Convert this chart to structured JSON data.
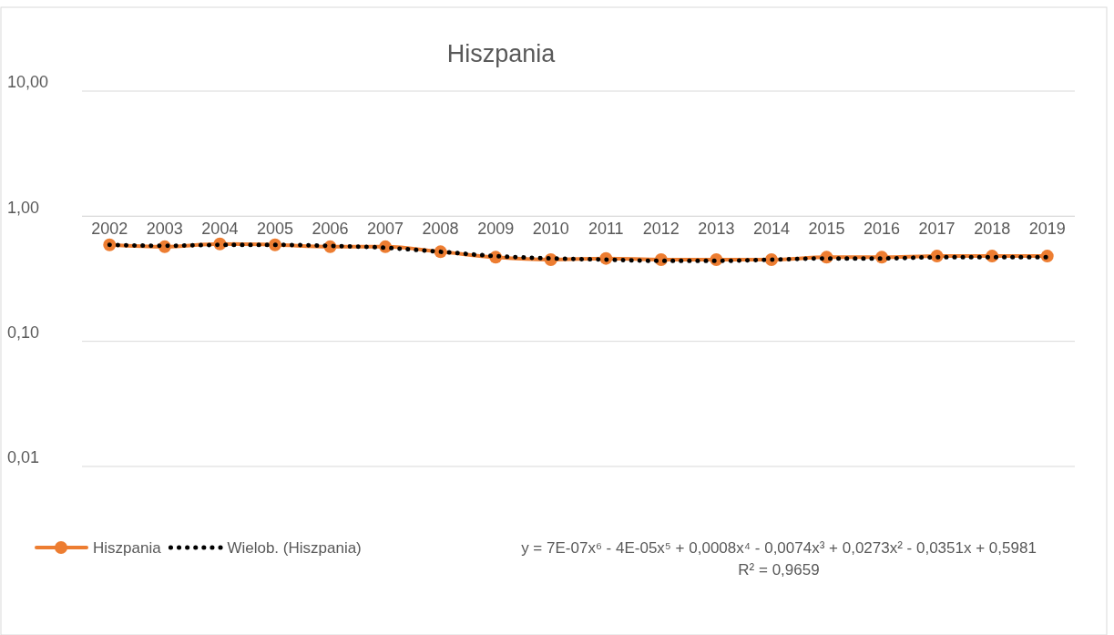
{
  "chart_data": {
    "type": "line",
    "title": "Hiszpania",
    "categories": [
      "2002",
      "2003",
      "2004",
      "2005",
      "2006",
      "2007",
      "2008",
      "2009",
      "2010",
      "2011",
      "2012",
      "2013",
      "2014",
      "2015",
      "2016",
      "2017",
      "2018",
      "2019"
    ],
    "series": [
      {
        "name": "Hiszpania",
        "color": "#ed7d31",
        "marker": "circle",
        "line_style": "solid",
        "values": [
          0.59,
          0.57,
          0.6,
          0.59,
          0.57,
          0.57,
          0.52,
          0.47,
          0.45,
          0.46,
          0.45,
          0.45,
          0.45,
          0.47,
          0.47,
          0.48,
          0.48,
          0.48
        ]
      },
      {
        "name": "Wielob. (Hiszpania)",
        "color": "#000000",
        "marker": "none",
        "line_style": "dotted",
        "values": [
          0.59,
          0.58,
          0.59,
          0.59,
          0.58,
          0.56,
          0.52,
          0.48,
          0.46,
          0.45,
          0.44,
          0.44,
          0.45,
          0.46,
          0.46,
          0.47,
          0.47,
          0.47
        ]
      }
    ],
    "ylim": [
      0.01,
      10
    ],
    "yticks": [
      {
        "value": 0.01,
        "label": "0,01"
      },
      {
        "value": 0.1,
        "label": "0,10"
      },
      {
        "value": 1,
        "label": "1,00"
      },
      {
        "value": 10,
        "label": "10,00"
      }
    ],
    "log": true,
    "grid": "y",
    "legend": "bottom",
    "annotations": [
      "y = 7E-07x⁶ - 4E-05x⁵ + 0,0008x⁴ - 0,0074x³ + 0,0273x² - 0,0351x + 0,5981",
      "R² = 0,9659"
    ]
  }
}
